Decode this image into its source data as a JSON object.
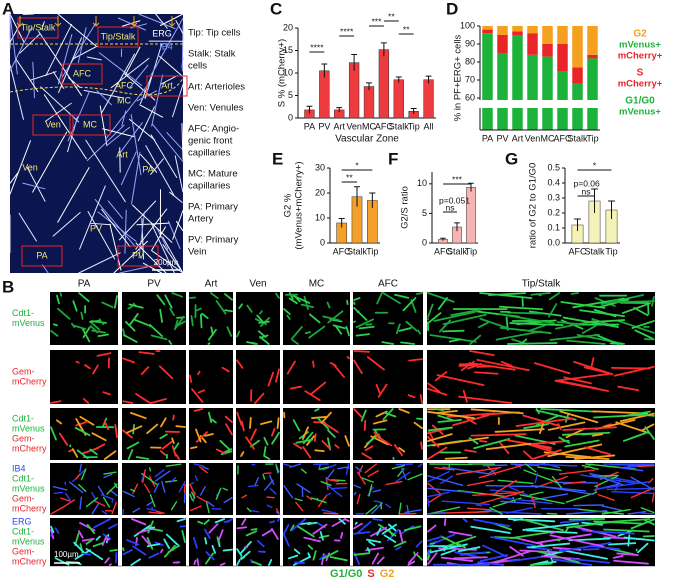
{
  "panels": {
    "A": {
      "label": "A",
      "image_labels": [
        "Tip/Stalk",
        "Tip/Stalk",
        "ERG",
        "IB4",
        "AFC",
        "Art",
        "AFC",
        "MC",
        "Ven",
        "MC",
        "Ven",
        "Art",
        "PA",
        "PV",
        "PA",
        "PV"
      ],
      "scale_bar": "200µm",
      "legend": [
        [
          "Tip: Tip cells"
        ],
        [
          "Stalk: Stalk",
          "cells"
        ],
        [
          "Art: Arterioles"
        ],
        [
          "Ven: Venules"
        ],
        [
          "AFC: Angio-",
          "genic front",
          "capillaries"
        ],
        [
          "MC: Mature",
          "capillaries"
        ],
        [
          "PA: Primary",
          "Artery"
        ],
        [
          "PV: Primary",
          "Vein"
        ]
      ]
    },
    "B": {
      "label": "B",
      "columns": [
        "PA",
        "PV",
        "Art",
        "Ven",
        "MC",
        "AFC",
        "Tip/Stalk"
      ],
      "rows": [
        [
          "Cdt1-",
          "mVenus"
        ],
        [
          "Gem-",
          "mCherry"
        ],
        [
          "Cdt1-",
          "mVenus",
          "Gem-",
          "mCherry"
        ],
        [
          "IB4",
          "Cdt1-",
          "mVenus",
          "Gem-",
          "mCherry"
        ],
        [
          "ERG",
          "Cdt1-",
          "mVenus",
          "Gem-",
          "mCherry"
        ]
      ],
      "scale_bar": "100µm",
      "legend": [
        {
          "name": "G1/G0",
          "color": "#1db33a"
        },
        {
          "name": "S",
          "color": "#e8262a"
        },
        {
          "name": "G2",
          "color": "#f5a01e"
        }
      ]
    }
  },
  "chart_data": [
    {
      "type": "bar",
      "label": "C",
      "ylabel": [
        "S % (mCherry+)"
      ],
      "xlabel": "Vascular Zone",
      "categories": [
        "PA",
        "PV",
        "Art",
        "Ven",
        "MC",
        "AFC",
        "Stalk",
        "Tip",
        "All"
      ],
      "values": [
        1.8,
        10.5,
        1.8,
        12.3,
        7,
        15.2,
        8.5,
        1.5,
        8.5
      ],
      "errors": [
        0.8,
        1.5,
        0.5,
        1.8,
        0.8,
        1.5,
        0.6,
        0.6,
        0.8
      ],
      "color": "#ee3b3f",
      "ylim": [
        0,
        20
      ],
      "yticks": [
        0,
        5,
        10,
        15,
        20
      ],
      "annotations": [
        "****",
        "****",
        "***",
        "**",
        "**"
      ]
    },
    {
      "type": "stacked_bar",
      "label": "D",
      "ylabel": [
        "% in PF+ERG+ cells"
      ],
      "categories": [
        "PA",
        "PV",
        "Art",
        "Ven",
        "MC",
        "AFC",
        "Stalk",
        "Tip"
      ],
      "series": [
        {
          "name": "G1/G0",
          "markers": [
            "mVenus+"
          ],
          "marker_colors": [
            "#1db33a"
          ],
          "color": "#1db33a",
          "values": [
            96,
            85,
            95,
            84,
            83,
            75,
            68,
            82
          ]
        },
        {
          "name": "S",
          "markers": [
            "mCherry+"
          ],
          "marker_colors": [
            "#e8262a"
          ],
          "color": "#e8262a",
          "values": [
            2,
            10,
            2,
            12,
            7,
            15,
            9,
            2
          ]
        },
        {
          "name": "G2",
          "markers": [
            "mVenus+",
            "mCherry+"
          ],
          "marker_colors": [
            "#1db33a",
            "#e8262a"
          ],
          "color": "#f5a01e",
          "values": [
            2,
            5,
            3,
            4,
            10,
            10,
            23,
            16
          ]
        }
      ],
      "ylim": [
        0,
        100
      ],
      "yticks": [
        60,
        70,
        80,
        90,
        100
      ]
    },
    {
      "type": "bar",
      "label": "E",
      "ylabel": [
        "G2 %",
        "(mVenus+mCherry+)"
      ],
      "categories": [
        "AFC",
        "Stalk",
        "Tip"
      ],
      "values": [
        8,
        18.5,
        17
      ],
      "errors": [
        1.8,
        4,
        3
      ],
      "color": "#f5a02a",
      "ylim": [
        0,
        30
      ],
      "yticks": [
        0,
        10,
        20,
        30
      ],
      "annotations": [
        "**",
        "*"
      ]
    },
    {
      "type": "bar",
      "label": "F",
      "ylabel": [
        "G2/S ratio"
      ],
      "categories": [
        "AFC",
        "Stalk",
        "Tip"
      ],
      "values": [
        0.6,
        2.7,
        9.4
      ],
      "errors": [
        0.2,
        0.7,
        0.7
      ],
      "color": "#f6b4b4",
      "ylim": [
        0,
        12
      ],
      "yticks": [
        0,
        5,
        10
      ],
      "annotations": [
        "p=0.051",
        "ns",
        "***"
      ]
    },
    {
      "type": "bar",
      "label": "G",
      "ylabel": [
        "ratio of G2 to G1/G0"
      ],
      "categories": [
        "AFC",
        "Stalk",
        "Tip"
      ],
      "values": [
        0.12,
        0.28,
        0.22
      ],
      "errors": [
        0.04,
        0.08,
        0.06
      ],
      "color": "#f4f2b6",
      "ylim": [
        0,
        0.5
      ],
      "yticks": [
        {
          "value": 0,
          "label": "0.0"
        },
        0.1,
        0.2,
        0.3,
        0.4,
        0.5
      ],
      "annotations": [
        "*",
        "p=0.06",
        "ns"
      ]
    }
  ]
}
